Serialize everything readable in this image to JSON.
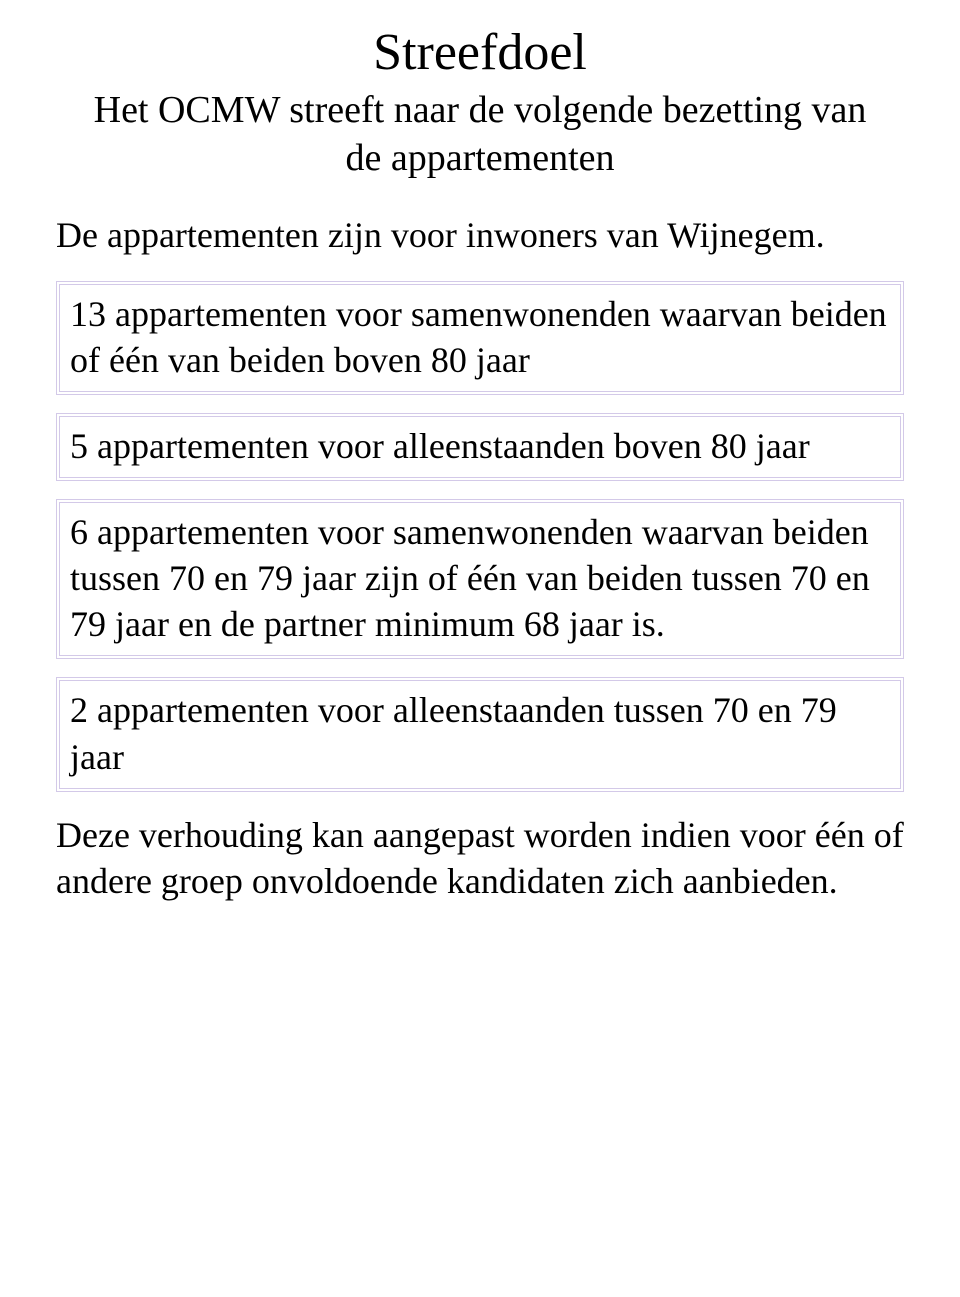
{
  "title": "Streefdoel",
  "subtitle": "Het OCMW streeft naar de volgende bezetting van de appartementen",
  "intro": "De appartementen zijn voor inwoners van Wijnegem.",
  "boxes": [
    "13 appartementen voor samenwonenden waarvan beiden of één van beiden boven 80 jaar",
    "5 appartementen voor alleenstaanden boven 80 jaar",
    "6 appartementen voor samenwonenden waarvan beiden tussen 70 en 79 jaar zijn of één van beiden tussen 70 en 79 jaar en de partner minimum 68 jaar is.",
    "2 appartementen voor alleenstaanden tussen 70 en 79 jaar"
  ],
  "outro": "Deze verhouding kan aangepast worden indien voor één of andere groep onvoldoende kandidaten zich aanbieden.",
  "colors": {
    "text": "#000000",
    "background": "#ffffff",
    "box_border": "#d3c9e8"
  },
  "typography": {
    "font_family": "Comic Sans MS",
    "title_fontsize_pt": 39,
    "subtitle_fontsize_pt": 28,
    "body_fontsize_pt": 27
  }
}
